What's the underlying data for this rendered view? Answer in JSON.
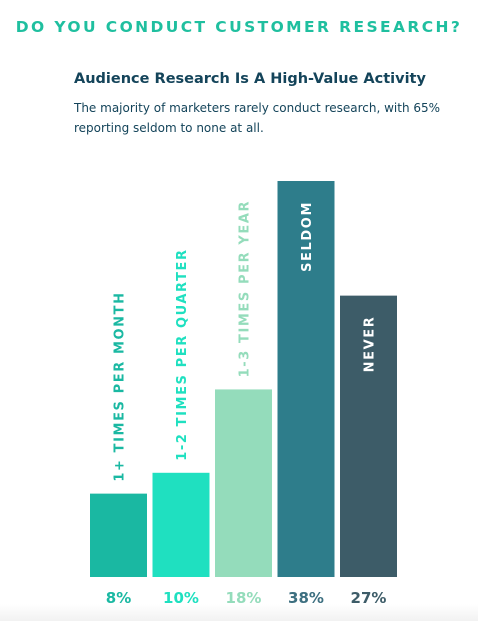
{
  "headline": "DO YOU CONDUCT CUSTOMER RESEARCH?",
  "chart_data": {
    "type": "bar",
    "title": "Audience Research Is A High-Value Activity",
    "subtitle": "The majority of marketers rarely conduct research, with 65% reporting seldom to none at all.",
    "categories": [
      "1+ TIMES PER MONTH",
      "1-2 TIMES PER QUARTER",
      "1-3 TIMES PER YEAR",
      "SELDOM",
      "NEVER"
    ],
    "values": [
      8,
      10,
      18,
      38,
      27
    ],
    "value_labels": [
      "8%",
      "10%",
      "18%",
      "38%",
      "27%"
    ],
    "colors": [
      "#1ab8a2",
      "#1fe0c0",
      "#94dcbb",
      "#2e7d8b",
      "#3d5c68"
    ],
    "label_colors": [
      "#1ab8a2",
      "#1fe0c0",
      "#94dcbb",
      "#ffffff",
      "#ffffff"
    ],
    "value_label_colors": [
      "#1ab8a2",
      "#1fe0c0",
      "#94dcbb",
      "#3d6f80",
      "#3d5c68"
    ],
    "ylim": [
      0,
      38
    ],
    "grid": false,
    "legend": "none"
  }
}
